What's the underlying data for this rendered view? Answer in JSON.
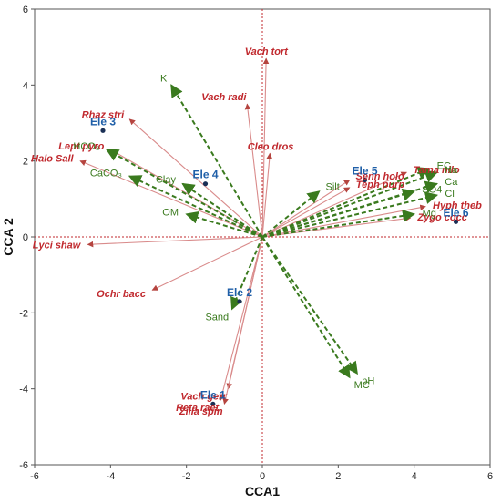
{
  "chart_data": {
    "type": "scatter",
    "subtype": "cca-biplot",
    "xlabel": "CCA1",
    "ylabel": "CCA 2",
    "xlim": [
      -6,
      6
    ],
    "ylim": [
      -6,
      6
    ],
    "xticks": [
      "-6",
      "-4",
      "-2",
      "0",
      "2",
      "4",
      "6"
    ],
    "yticks": [
      "-6",
      "-4",
      "-2",
      "0",
      "2",
      "4",
      "6"
    ],
    "grid": false,
    "colors": {
      "environment": "#3a7a1e",
      "species": "#c0282d",
      "species_arrow": "#d98b8b",
      "site": "#1f5fa8",
      "site_point": "#1a2f55",
      "zero_line": "#c0282d"
    },
    "environment_vectors": [
      {
        "label": "K",
        "x": -2.4,
        "y": 4.0
      },
      {
        "label": "HCO₃",
        "x": -4.1,
        "y": 2.3
      },
      {
        "label": "CaCO₃",
        "x": -3.5,
        "y": 1.6
      },
      {
        "label": "Clay",
        "x": -2.1,
        "y": 1.4
      },
      {
        "label": "OM",
        "x": -2.0,
        "y": 0.6
      },
      {
        "label": "Silt",
        "x": 1.5,
        "y": 1.2
      },
      {
        "label": "EC",
        "x": 4.4,
        "y": 1.8
      },
      {
        "label": "Na",
        "x": 4.6,
        "y": 1.7
      },
      {
        "label": "Ca",
        "x": 4.6,
        "y": 1.4
      },
      {
        "label": "SO4",
        "x": 4.0,
        "y": 1.2
      },
      {
        "label": "Cl",
        "x": 4.6,
        "y": 1.1
      },
      {
        "label": "Mg",
        "x": 4.0,
        "y": 0.6
      },
      {
        "label": "Sand",
        "x": -0.8,
        "y": -1.9
      },
      {
        "label": "pH",
        "x": 2.5,
        "y": -3.6
      },
      {
        "label": "MC",
        "x": 2.3,
        "y": -3.7
      }
    ],
    "species_vectors": [
      {
        "label": "Vach  tort",
        "x": 0.1,
        "y": 4.7
      },
      {
        "label": "Vach radi",
        "x": -0.4,
        "y": 3.5
      },
      {
        "label": "Rhaz stri",
        "x": -3.5,
        "y": 3.1
      },
      {
        "label": "Lept  pyro",
        "x": -4.0,
        "y": 2.3
      },
      {
        "label": "Halo Sall",
        "x": -4.8,
        "y": 2.0
      },
      {
        "label": "Cleo dros",
        "x": 0.2,
        "y": 2.2
      },
      {
        "label": "Senn holo",
        "x": 2.3,
        "y": 1.5
      },
      {
        "label": "Teph purp",
        "x": 2.3,
        "y": 1.3
      },
      {
        "label": "Tama nilo",
        "x": 3.8,
        "y": 1.7
      },
      {
        "label": "Hyph theb",
        "x": 4.3,
        "y": 0.8
      },
      {
        "label": "Zygo cocc",
        "x": 3.9,
        "y": 0.5
      },
      {
        "label": "Lyci shaw",
        "x": -4.6,
        "y": -0.2
      },
      {
        "label": "Ochr  bacc",
        "x": -2.9,
        "y": -1.4
      },
      {
        "label": "Reta raet",
        "x": -1.1,
        "y": -4.3
      },
      {
        "label": "Vach  gerr",
        "x": -0.9,
        "y": -4.0
      },
      {
        "label": "Zilla spin",
        "x": -1.0,
        "y": -4.4
      }
    ],
    "sites": [
      {
        "label": "Ele 1",
        "x": -1.3,
        "y": -4.4
      },
      {
        "label": "Ele 2",
        "x": -0.6,
        "y": -1.7
      },
      {
        "label": "Ele 3",
        "x": -4.2,
        "y": 2.8
      },
      {
        "label": "Ele 4",
        "x": -1.5,
        "y": 1.4
      },
      {
        "label": "Ele 5",
        "x": 2.7,
        "y": 1.5
      },
      {
        "label": "Ele 6",
        "x": 5.1,
        "y": 0.4
      }
    ]
  }
}
